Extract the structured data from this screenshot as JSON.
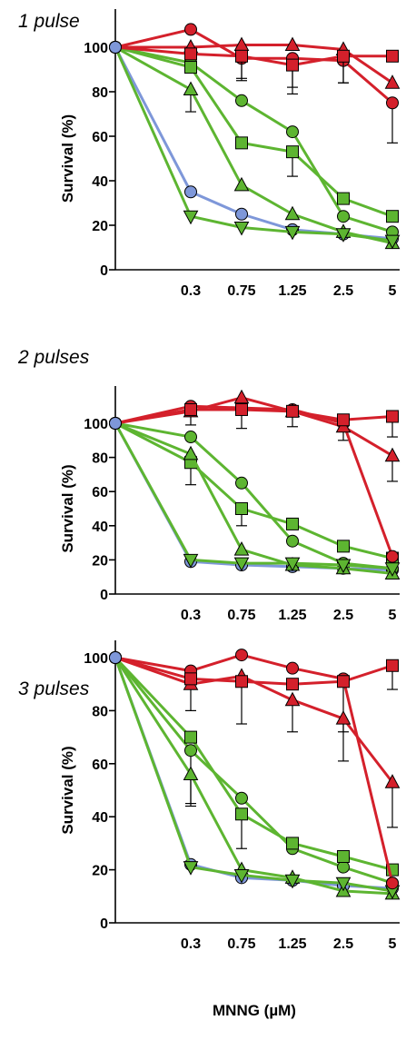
{
  "colors": {
    "red": "#d4202b",
    "green": "#5db531",
    "blue": "#7e97d9",
    "axis": "#000000"
  },
  "chart_data": [
    {
      "type": "line",
      "title": "1 pulse",
      "ylabel": "Survival (%)",
      "xlabel": "",
      "categories": [
        "0",
        "0.3",
        "0.75",
        "1.25",
        "2.5",
        "5"
      ],
      "tick_labels": [
        "0.3",
        "0.75",
        "1.25",
        "2.5",
        "5"
      ],
      "ylim": [
        0,
        110
      ],
      "yticks": [
        "0",
        "20",
        "40",
        "60",
        "80",
        "100"
      ],
      "series": [
        {
          "color": "red",
          "marker": "circle",
          "values": [
            100,
            108,
            95,
            95,
            94,
            75
          ],
          "err": [
            0,
            0,
            10,
            16,
            10,
            18
          ]
        },
        {
          "color": "red",
          "marker": "triangle",
          "values": [
            100,
            100,
            101,
            101,
            99,
            84
          ],
          "err": [
            0,
            0,
            0,
            0,
            0,
            0
          ]
        },
        {
          "color": "red",
          "marker": "square",
          "values": [
            100,
            97,
            96,
            92,
            96,
            96
          ],
          "err": [
            0,
            0,
            10,
            10,
            12,
            0
          ]
        },
        {
          "color": "green",
          "marker": "circle",
          "values": [
            100,
            93,
            76,
            62,
            24,
            17
          ],
          "err": [
            0,
            0,
            0,
            0,
            0,
            0
          ]
        },
        {
          "color": "green",
          "marker": "square",
          "values": [
            100,
            91,
            57,
            53,
            32,
            24
          ],
          "err": [
            0,
            0,
            0,
            11,
            0,
            0
          ]
        },
        {
          "color": "green",
          "marker": "triangle",
          "values": [
            100,
            81,
            38,
            25,
            17,
            12
          ],
          "err": [
            0,
            10,
            0,
            0,
            0,
            0
          ]
        },
        {
          "color": "green",
          "marker": "triangle-down",
          "values": [
            100,
            24,
            19,
            17,
            16,
            13
          ],
          "err": [
            0,
            0,
            0,
            0,
            0,
            0
          ]
        },
        {
          "color": "blue",
          "marker": "circle",
          "values": [
            100,
            35,
            25,
            18,
            16,
            14
          ],
          "err": [
            0,
            0,
            0,
            0,
            0,
            0
          ]
        }
      ]
    },
    {
      "type": "line",
      "title": "2 pulses",
      "ylabel": "Survival (%)",
      "xlabel": "",
      "categories": [
        "0",
        "0.3",
        "0.75",
        "1.25",
        "2.5",
        "5"
      ],
      "tick_labels": [
        "0.3",
        "0.75",
        "1.25",
        "2.5",
        "5"
      ],
      "ylim": [
        0,
        110
      ],
      "yticks": [
        "0",
        "20",
        "40",
        "60",
        "80",
        "100"
      ],
      "series": [
        {
          "color": "red",
          "marker": "circle",
          "values": [
            100,
            110,
            109,
            108,
            100,
            22
          ],
          "err": [
            0,
            0,
            12,
            10,
            10,
            0
          ]
        },
        {
          "color": "red",
          "marker": "triangle",
          "values": [
            100,
            107,
            115,
            107,
            98,
            81
          ],
          "err": [
            0,
            8,
            0,
            0,
            0,
            15
          ]
        },
        {
          "color": "red",
          "marker": "square",
          "values": [
            100,
            108,
            108,
            107,
            102,
            104
          ],
          "err": [
            0,
            0,
            0,
            0,
            0,
            12
          ]
        },
        {
          "color": "green",
          "marker": "circle",
          "values": [
            100,
            92,
            65,
            31,
            18,
            15
          ],
          "err": [
            0,
            0,
            0,
            0,
            0,
            0
          ]
        },
        {
          "color": "green",
          "marker": "square",
          "values": [
            100,
            77,
            50,
            41,
            28,
            21
          ],
          "err": [
            0,
            13,
            10,
            0,
            0,
            0
          ]
        },
        {
          "color": "green",
          "marker": "triangle",
          "values": [
            100,
            82,
            26,
            17,
            15,
            12
          ],
          "err": [
            0,
            0,
            0,
            0,
            0,
            0
          ]
        },
        {
          "color": "green",
          "marker": "triangle-down",
          "values": [
            100,
            20,
            18,
            18,
            17,
            15
          ],
          "err": [
            0,
            0,
            0,
            0,
            0,
            0
          ]
        },
        {
          "color": "blue",
          "marker": "circle",
          "values": [
            100,
            19,
            17,
            16,
            15,
            14
          ],
          "err": [
            0,
            0,
            0,
            0,
            0,
            0
          ]
        }
      ]
    },
    {
      "type": "line",
      "title": "3 pulses",
      "ylabel": "Survival (%)",
      "xlabel": "MNNG (µM)",
      "categories": [
        "0",
        "0.3",
        "0.75",
        "1.25",
        "2.5",
        "5"
      ],
      "tick_labels": [
        "0.3",
        "0.75",
        "1.25",
        "2.5",
        "5"
      ],
      "ylim": [
        0,
        110
      ],
      "yticks": [
        "0",
        "20",
        "40",
        "60",
        "80",
        "100"
      ],
      "series": [
        {
          "color": "red",
          "marker": "circle",
          "values": [
            100,
            95,
            101,
            96,
            92,
            15
          ],
          "err": [
            0,
            0,
            0,
            0,
            20,
            0
          ]
        },
        {
          "color": "red",
          "marker": "triangle",
          "values": [
            100,
            90,
            93,
            84,
            77,
            53
          ],
          "err": [
            0,
            10,
            18,
            12,
            16,
            17
          ]
        },
        {
          "color": "red",
          "marker": "square",
          "values": [
            100,
            92,
            91,
            90,
            91,
            97
          ],
          "err": [
            0,
            0,
            0,
            0,
            0,
            9
          ]
        },
        {
          "color": "green",
          "marker": "circle",
          "values": [
            100,
            65,
            47,
            28,
            21,
            15
          ],
          "err": [
            0,
            21,
            0,
            0,
            0,
            0
          ]
        },
        {
          "color": "green",
          "marker": "square",
          "values": [
            100,
            70,
            41,
            30,
            25,
            20
          ],
          "err": [
            0,
            0,
            13,
            0,
            0,
            0
          ]
        },
        {
          "color": "green",
          "marker": "triangle",
          "values": [
            100,
            56,
            20,
            17,
            12,
            11
          ],
          "err": [
            0,
            11,
            0,
            0,
            0,
            0
          ]
        },
        {
          "color": "green",
          "marker": "triangle-down",
          "values": [
            100,
            21,
            18,
            16,
            15,
            12
          ],
          "err": [
            0,
            0,
            0,
            0,
            0,
            0
          ]
        },
        {
          "color": "blue",
          "marker": "circle",
          "values": [
            100,
            22,
            17,
            16,
            14,
            13
          ],
          "err": [
            0,
            0,
            0,
            0,
            0,
            0
          ]
        }
      ]
    }
  ]
}
